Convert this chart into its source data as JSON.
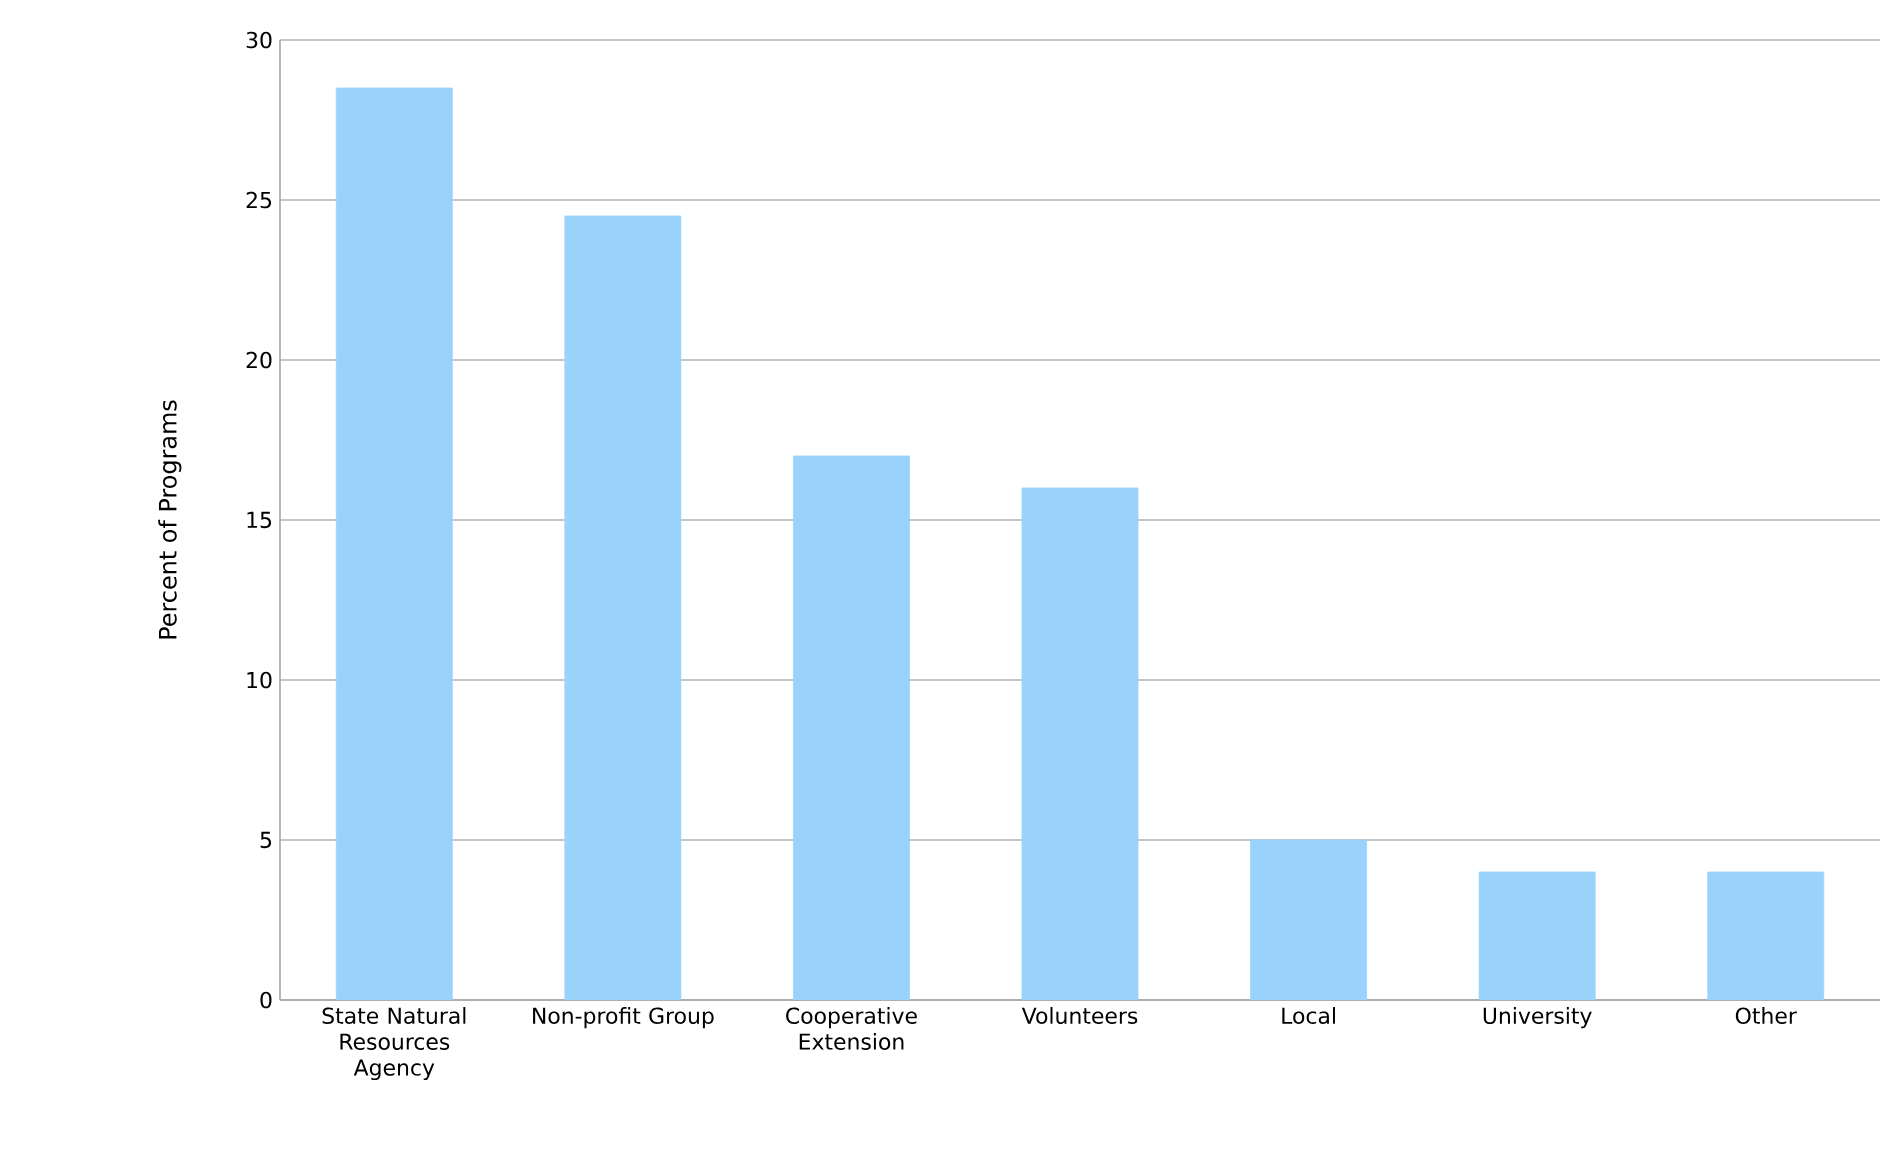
{
  "chart_data": {
    "type": "bar",
    "ylabel": "Percent of Programs",
    "categories": [
      "State Natural Resources Agency",
      "Non-profit Group",
      "Cooperative Extension",
      "Volunteers",
      "Local",
      "University",
      "Other"
    ],
    "values": [
      28.5,
      24.5,
      17,
      16,
      5,
      4,
      4
    ],
    "color": "#99d3fb",
    "ylim": [
      0,
      30
    ],
    "yticks": [
      0,
      5,
      10,
      15,
      20,
      25,
      30
    ],
    "grid": "y"
  }
}
